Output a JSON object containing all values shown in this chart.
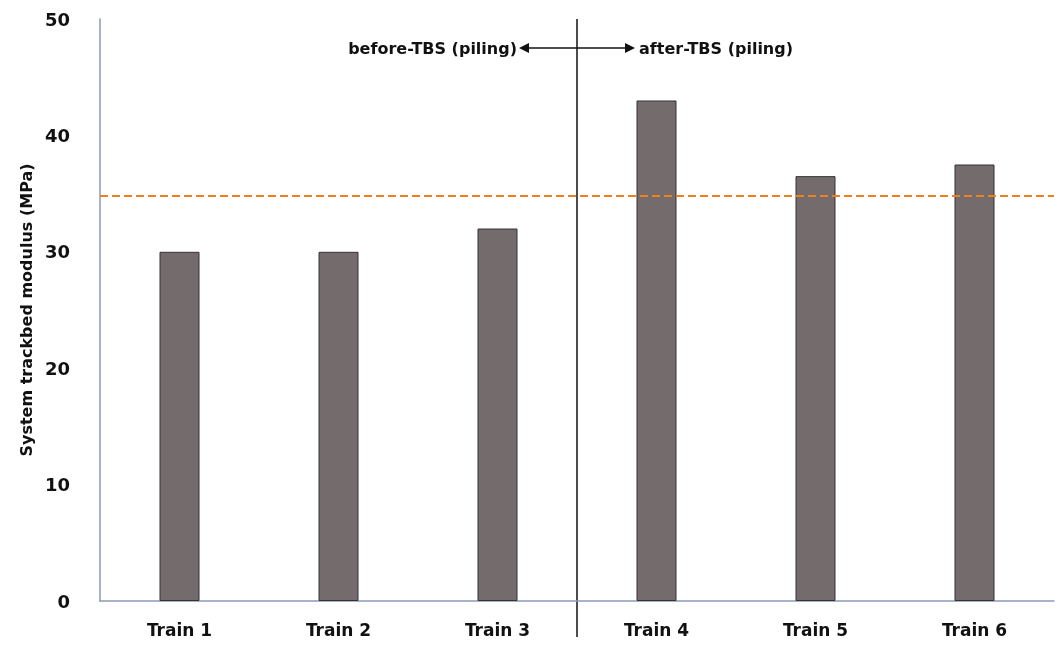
{
  "chart_data": {
    "type": "bar",
    "ylabel": "System trackbed modulus (MPa)",
    "categories": [
      "Train 1",
      "Train 2",
      "Train 3",
      "Train 4",
      "Train 5",
      "Train 6"
    ],
    "values": [
      30,
      30,
      32,
      43,
      36.5,
      37.5
    ],
    "color": "#746c6c",
    "ylim": [
      0,
      50
    ],
    "yticks": [
      0,
      10,
      20,
      30,
      40,
      50
    ],
    "grid": false,
    "ref_lines": [
      {
        "axis": "y",
        "value": 34.8,
        "color": "#f07f22",
        "line_style": "dashed"
      }
    ],
    "annotations": [
      "before-TBS (piling)",
      "after-TBS (piling)"
    ]
  }
}
